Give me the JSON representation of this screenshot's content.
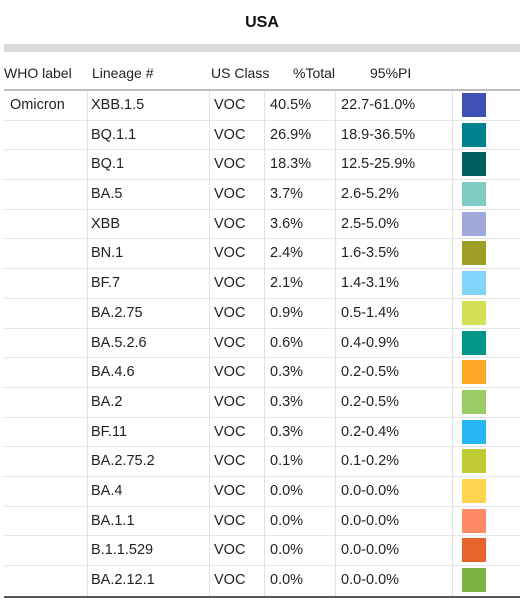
{
  "title": "USA",
  "headers": {
    "who_label": "WHO label",
    "lineage": "Lineage #",
    "us_class": "US Class",
    "pct_total": "%Total",
    "pi": "95%PI"
  },
  "rows": [
    {
      "who": "Omicron",
      "lineage": "XBB.1.5",
      "class": "VOC",
      "total": "40.5%",
      "pi": "22.7-61.0%",
      "color": "#3f51b5"
    },
    {
      "who": "",
      "lineage": "BQ.1.1",
      "class": "VOC",
      "total": "26.9%",
      "pi": "18.9-36.5%",
      "color": "#00838f"
    },
    {
      "who": "",
      "lineage": "BQ.1",
      "class": "VOC",
      "total": "18.3%",
      "pi": "12.5-25.9%",
      "color": "#005f5f"
    },
    {
      "who": "",
      "lineage": "BA.5",
      "class": "VOC",
      "total": "3.7%",
      "pi": "2.6-5.2%",
      "color": "#80cbc4"
    },
    {
      "who": "",
      "lineage": "XBB",
      "class": "VOC",
      "total": "3.6%",
      "pi": "2.5-5.0%",
      "color": "#9fa8da"
    },
    {
      "who": "",
      "lineage": "BN.1",
      "class": "VOC",
      "total": "2.4%",
      "pi": "1.6-3.5%",
      "color": "#9e9d24"
    },
    {
      "who": "",
      "lineage": "BF.7",
      "class": "VOC",
      "total": "2.1%",
      "pi": "1.4-3.1%",
      "color": "#81d4fa"
    },
    {
      "who": "",
      "lineage": "BA.2.75",
      "class": "VOC",
      "total": "0.9%",
      "pi": "0.5-1.4%",
      "color": "#d4e157"
    },
    {
      "who": "",
      "lineage": "BA.5.2.6",
      "class": "VOC",
      "total": "0.6%",
      "pi": "0.4-0.9%",
      "color": "#009688"
    },
    {
      "who": "",
      "lineage": "BA.4.6",
      "class": "VOC",
      "total": "0.3%",
      "pi": "0.2-0.5%",
      "color": "#ffa726"
    },
    {
      "who": "",
      "lineage": "BA.2",
      "class": "VOC",
      "total": "0.3%",
      "pi": "0.2-0.5%",
      "color": "#9ccc65"
    },
    {
      "who": "",
      "lineage": "BF.11",
      "class": "VOC",
      "total": "0.3%",
      "pi": "0.2-0.4%",
      "color": "#29b6f6"
    },
    {
      "who": "",
      "lineage": "BA.2.75.2",
      "class": "VOC",
      "total": "0.1%",
      "pi": "0.1-0.2%",
      "color": "#c0ca33"
    },
    {
      "who": "",
      "lineage": "BA.4",
      "class": "VOC",
      "total": "0.0%",
      "pi": "0.0-0.0%",
      "color": "#ffd54f"
    },
    {
      "who": "",
      "lineage": "BA.1.1",
      "class": "VOC",
      "total": "0.0%",
      "pi": "0.0-0.0%",
      "color": "#ff8a65"
    },
    {
      "who": "",
      "lineage": "B.1.1.529",
      "class": "VOC",
      "total": "0.0%",
      "pi": "0.0-0.0%",
      "color": "#e8622c"
    },
    {
      "who": "",
      "lineage": "BA.2.12.1",
      "class": "VOC",
      "total": "0.0%",
      "pi": "0.0-0.0%",
      "color": "#7cb342"
    }
  ]
}
